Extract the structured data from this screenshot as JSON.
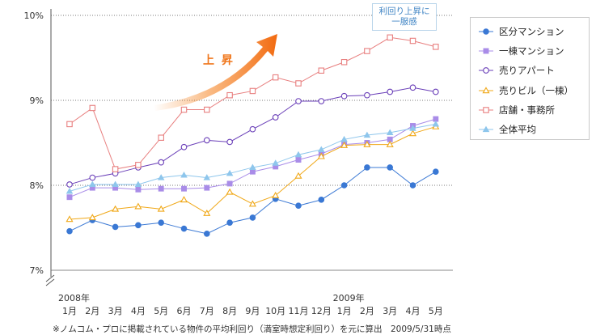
{
  "chart_data": {
    "type": "line",
    "ylim": [
      7,
      10
    ],
    "yticks": [
      "7%",
      "8%",
      "9%",
      "10%"
    ],
    "ytick_values": [
      7,
      8,
      9,
      10
    ],
    "categories": [
      "1月",
      "2月",
      "3月",
      "4月",
      "5月",
      "6月",
      "7月",
      "8月",
      "9月",
      "10月",
      "11月",
      "12月",
      "1月",
      "2月",
      "3月",
      "4月",
      "5月"
    ],
    "year_labels": [
      {
        "text": "2008年",
        "index": 0
      },
      {
        "text": "2009年",
        "index": 12
      }
    ],
    "series": [
      {
        "name": "区分マンション",
        "color": "#3a78d4",
        "marker": "circle-filled",
        "values": [
          7.46,
          7.59,
          7.51,
          7.53,
          7.56,
          7.49,
          7.43,
          7.56,
          7.62,
          7.84,
          7.76,
          7.83,
          8.0,
          8.21,
          8.21,
          8.0,
          8.16
        ]
      },
      {
        "name": "一棟マンション",
        "color": "#a98ce8",
        "marker": "square-filled",
        "values": [
          7.86,
          7.97,
          7.97,
          7.95,
          7.96,
          7.96,
          7.97,
          8.02,
          8.16,
          8.22,
          8.3,
          8.37,
          8.48,
          8.5,
          8.54,
          8.7,
          8.78
        ]
      },
      {
        "name": "売りアパート",
        "color": "#6a3fb8",
        "marker": "circle-open",
        "values": [
          8.01,
          8.09,
          8.14,
          8.21,
          8.27,
          8.45,
          8.53,
          8.51,
          8.66,
          8.8,
          8.99,
          8.99,
          9.05,
          9.06,
          9.1,
          9.15,
          9.1
        ]
      },
      {
        "name": "売りビル（一棟）",
        "color": "#f0a818",
        "marker": "triangle-open",
        "values": [
          7.6,
          7.62,
          7.72,
          7.75,
          7.72,
          7.83,
          7.67,
          7.92,
          7.78,
          7.88,
          8.11,
          8.34,
          8.47,
          8.48,
          8.48,
          8.61,
          8.69
        ]
      },
      {
        "name": "店舗・事務所",
        "color": "#e87f7f",
        "marker": "square-open",
        "values": [
          8.72,
          8.91,
          8.19,
          8.24,
          8.56,
          8.89,
          8.89,
          9.06,
          9.11,
          9.27,
          9.2,
          9.35,
          9.45,
          9.58,
          9.74,
          9.7,
          9.63
        ]
      },
      {
        "name": "全体平均",
        "color": "#8ec6ec",
        "marker": "triangle-filled",
        "values": [
          7.93,
          8.01,
          8.01,
          8.01,
          8.09,
          8.12,
          8.09,
          8.14,
          8.21,
          8.26,
          8.36,
          8.42,
          8.54,
          8.59,
          8.62,
          8.67,
          8.72
        ]
      }
    ],
    "annotations": {
      "callout_text": [
        "利回り上昇に",
        "一服感"
      ],
      "rise_label": "上 昇"
    },
    "footnote": "※ノムコム・プロに掲載されている物件の平均利回り（満室時想定利回り）を元に算出　2009/5/31時点"
  }
}
